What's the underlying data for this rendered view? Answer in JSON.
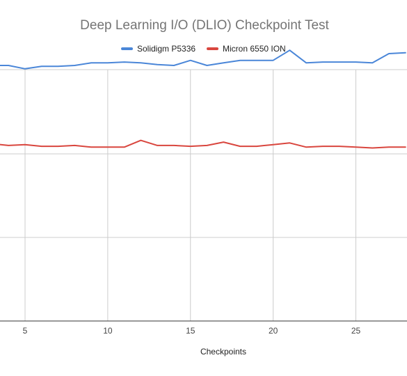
{
  "chart_data": {
    "type": "line",
    "title": "Deep Learning I/O (DLIO) Checkpoint Test",
    "xlabel": "Checkpoints",
    "ylabel": "",
    "x_ticks": [
      5,
      10,
      15,
      20,
      25
    ],
    "y_gridlines": [
      1,
      2,
      3
    ],
    "xlim": [
      3.5,
      28.0
    ],
    "ylim": [
      0,
      4
    ],
    "legend_position": "top-center",
    "x": [
      3,
      4,
      5,
      6,
      7,
      8,
      9,
      10,
      11,
      12,
      13,
      14,
      15,
      16,
      17,
      18,
      19,
      20,
      21,
      22,
      23,
      24,
      25,
      26,
      27,
      28
    ],
    "series": [
      {
        "name": "Solidigm P5336",
        "color": "#4a86d8",
        "values": [
          3.05,
          3.05,
          3.01,
          3.04,
          3.04,
          3.05,
          3.08,
          3.08,
          3.09,
          3.08,
          3.06,
          3.05,
          3.11,
          3.05,
          3.08,
          3.11,
          3.11,
          3.11,
          3.23,
          3.08,
          3.09,
          3.09,
          3.09,
          3.08,
          3.19,
          3.2
        ]
      },
      {
        "name": "Micron 6550 ION",
        "color": "#d9463e",
        "values": [
          2.12,
          2.1,
          2.11,
          2.09,
          2.09,
          2.1,
          2.08,
          2.08,
          2.08,
          2.16,
          2.1,
          2.1,
          2.09,
          2.1,
          2.14,
          2.09,
          2.09,
          2.11,
          2.13,
          2.08,
          2.09,
          2.09,
          2.08,
          2.07,
          2.08,
          2.08
        ]
      }
    ]
  }
}
